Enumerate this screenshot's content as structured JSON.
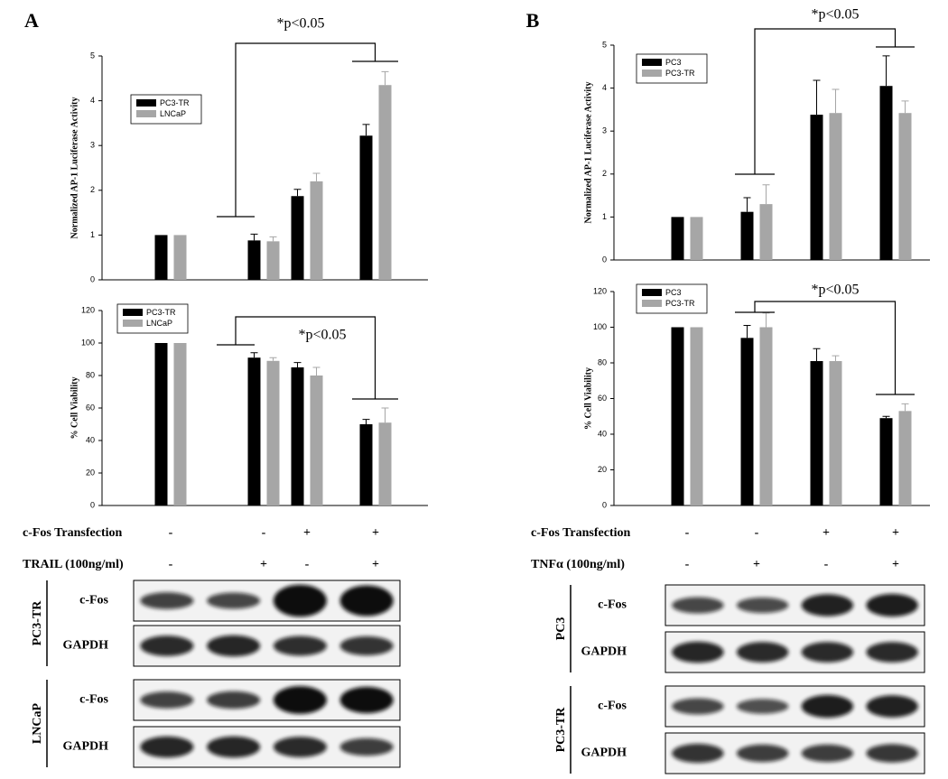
{
  "panels": [
    {
      "label": "A",
      "conditions": [
        {
          "label": "c-Fos Transfection",
          "values": [
            "-",
            "-",
            "+",
            "+"
          ]
        },
        {
          "label": "TRAIL  (100ng/ml)",
          "values": [
            "-",
            "+",
            "-",
            "+"
          ]
        }
      ],
      "blots": [
        {
          "cell_line": "PC3-TR",
          "rows": [
            "c-Fos",
            "GAPDH"
          ]
        },
        {
          "cell_line": "LNCaP",
          "rows": [
            "c-Fos",
            "GAPDH"
          ]
        }
      ]
    },
    {
      "label": "B",
      "conditions": [
        {
          "label": "c-Fos Transfection",
          "values": [
            "-",
            "-",
            "+",
            "+"
          ]
        },
        {
          "label": "TNFα  (100ng/ml)",
          "values": [
            "-",
            "+",
            "-",
            "+"
          ]
        }
      ],
      "blots": [
        {
          "cell_line": "PC3",
          "rows": [
            "c-Fos",
            "GAPDH"
          ]
        },
        {
          "cell_line": "PC3-TR",
          "rows": [
            "c-Fos",
            "GAPDH"
          ]
        }
      ]
    }
  ],
  "chart_data": [
    {
      "type": "bar",
      "ylabel": "Normalized AP-1 Luciferase Activity",
      "annotation": "*p<0.05",
      "categories": [
        null,
        null,
        null,
        null
      ],
      "ylim": [
        0,
        5
      ],
      "yticks": [
        0,
        1,
        2,
        3,
        4,
        5
      ],
      "legend": "upper left",
      "series": [
        {
          "name": "PC3-TR",
          "color": "#000000",
          "values": [
            1,
            0.88,
            1.87,
            3.22
          ],
          "errors": [
            0,
            0.14,
            0.15,
            0.25
          ]
        },
        {
          "name": "LNCaP",
          "color": "#a6a6a6",
          "values": [
            1,
            0.86,
            2.2,
            4.35
          ],
          "errors": [
            0,
            0.1,
            0.18,
            0.3
          ]
        }
      ]
    },
    {
      "type": "bar",
      "ylabel": "% Cell Viability",
      "annotation": "*p<0.05",
      "categories": [
        null,
        null,
        null,
        null
      ],
      "ylim": [
        0,
        120
      ],
      "yticks": [
        0,
        20,
        40,
        60,
        80,
        100,
        120
      ],
      "legend": "upper left",
      "series": [
        {
          "name": "PC3-TR",
          "color": "#000000",
          "values": [
            100,
            91,
            85,
            50
          ],
          "errors": [
            0,
            3,
            3,
            3
          ]
        },
        {
          "name": "LNCaP",
          "color": "#a6a6a6",
          "values": [
            100,
            89,
            80,
            51
          ],
          "errors": [
            0,
            2,
            5,
            9
          ]
        }
      ]
    },
    {
      "type": "bar",
      "ylabel": "Normalized AP-1 Luciferase Activity",
      "annotation": "*p<0.05",
      "categories": [
        null,
        null,
        null,
        null
      ],
      "ylim": [
        0,
        5
      ],
      "yticks": [
        0,
        1,
        2,
        3,
        4,
        5
      ],
      "legend": "upper left",
      "series": [
        {
          "name": "PC3",
          "color": "#000000",
          "values": [
            1,
            1.12,
            3.38,
            4.05
          ],
          "errors": [
            0,
            0.33,
            0.8,
            0.7
          ]
        },
        {
          "name": "PC3-TR",
          "color": "#a6a6a6",
          "values": [
            1,
            1.3,
            3.42,
            3.42
          ],
          "errors": [
            0,
            0.45,
            0.55,
            0.28
          ]
        }
      ]
    },
    {
      "type": "bar",
      "ylabel": "% Cell Viability",
      "annotation": "*p<0.05",
      "categories": [
        null,
        null,
        null,
        null
      ],
      "ylim": [
        0,
        120
      ],
      "yticks": [
        0,
        20,
        40,
        60,
        80,
        100,
        120
      ],
      "legend": "upper left",
      "series": [
        {
          "name": "PC3",
          "color": "#000000",
          "values": [
            100,
            94,
            81,
            49
          ],
          "errors": [
            0,
            7,
            7,
            1
          ]
        },
        {
          "name": "PC3-TR",
          "color": "#a6a6a6",
          "values": [
            100,
            100,
            81,
            53
          ],
          "errors": [
            0,
            8,
            3,
            4
          ]
        }
      ]
    }
  ]
}
